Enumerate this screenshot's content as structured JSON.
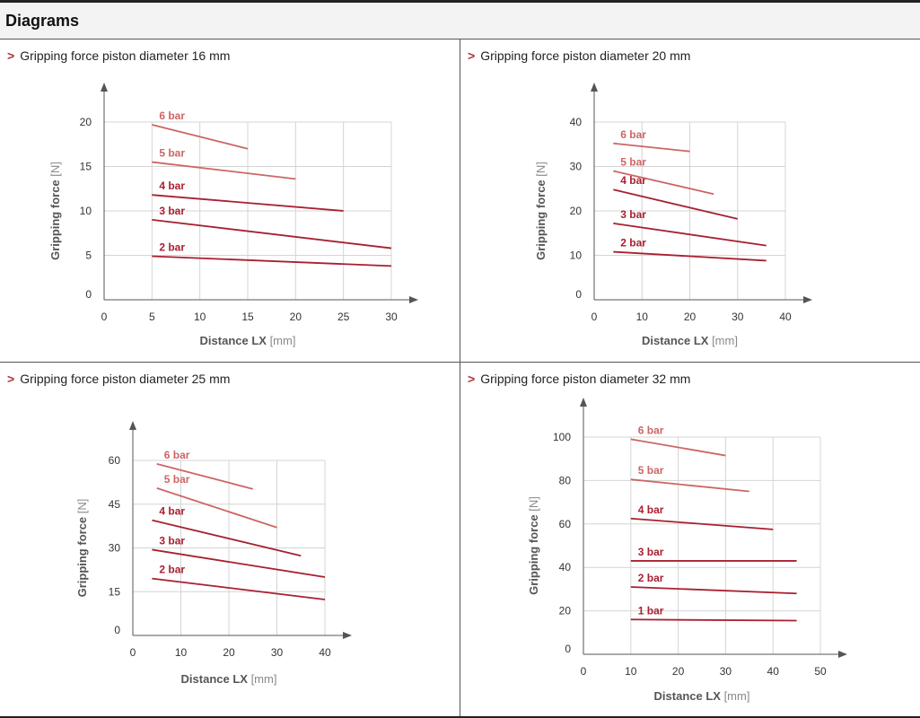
{
  "page": {
    "heading": "Diagrams",
    "title_marker": ">"
  },
  "colors": {
    "accent": "#b0323c",
    "dark_line": "#a82030",
    "light_line": "#cc6666",
    "grid": "#d4d4d4",
    "axis": "#555555"
  },
  "chart_data": [
    {
      "type": "line",
      "title": "Gripping force piston diameter 16 mm",
      "xlabel": "Distance LX",
      "xunit": "[mm]",
      "ylabel": "Gripping force",
      "yunit": "[N]",
      "xticks": [
        0,
        5,
        10,
        15,
        20,
        25,
        30
      ],
      "yticks": [
        0,
        5,
        10,
        15,
        20
      ],
      "xlim": [
        0,
        30
      ],
      "ylim": [
        0,
        20
      ],
      "grid": true,
      "series": [
        {
          "name": "2 bar",
          "x": [
            5,
            30
          ],
          "y": [
            4.9,
            3.8
          ]
        },
        {
          "name": "3 bar",
          "x": [
            5,
            30
          ],
          "y": [
            9.0,
            5.8
          ]
        },
        {
          "name": "4 bar",
          "x": [
            5,
            25
          ],
          "y": [
            11.8,
            10.0
          ]
        },
        {
          "name": "5 bar",
          "x": [
            5,
            20
          ],
          "y": [
            15.5,
            13.6
          ]
        },
        {
          "name": "6 bar",
          "x": [
            5,
            15
          ],
          "y": [
            19.7,
            17.0
          ]
        }
      ]
    },
    {
      "type": "line",
      "title": "Gripping force piston diameter 20 mm",
      "xlabel": "Distance LX",
      "xunit": "[mm]",
      "ylabel": "Gripping force",
      "yunit": "[N]",
      "xticks": [
        0,
        10,
        20,
        30,
        40
      ],
      "yticks": [
        0,
        10,
        20,
        30,
        40
      ],
      "xlim": [
        0,
        40
      ],
      "ylim": [
        0,
        40
      ],
      "grid": true,
      "series": [
        {
          "name": "2 bar",
          "x": [
            4,
            36
          ],
          "y": [
            10.8,
            8.8
          ]
        },
        {
          "name": "3 bar",
          "x": [
            4,
            36
          ],
          "y": [
            17.2,
            12.2
          ]
        },
        {
          "name": "4 bar",
          "x": [
            4,
            30
          ],
          "y": [
            24.8,
            18.2
          ]
        },
        {
          "name": "5 bar",
          "x": [
            4,
            25
          ],
          "y": [
            29.0,
            23.8
          ]
        },
        {
          "name": "6 bar",
          "x": [
            4,
            20
          ],
          "y": [
            35.2,
            33.4
          ]
        }
      ]
    },
    {
      "type": "line",
      "title": "Gripping force piston diameter 25 mm",
      "xlabel": "Distance LX",
      "xunit": "[mm]",
      "ylabel": "Gripping force",
      "yunit": "[N]",
      "xticks": [
        0,
        10,
        20,
        30,
        40
      ],
      "yticks": [
        0,
        15,
        30,
        45,
        60
      ],
      "xlim": [
        0,
        40
      ],
      "ylim": [
        0,
        60
      ],
      "grid": true,
      "series": [
        {
          "name": "2 bar",
          "x": [
            4,
            40
          ],
          "y": [
            19.5,
            12.3
          ]
        },
        {
          "name": "3 bar",
          "x": [
            4,
            40
          ],
          "y": [
            29.4,
            20.0
          ]
        },
        {
          "name": "4 bar",
          "x": [
            4,
            35
          ],
          "y": [
            39.5,
            27.3
          ]
        },
        {
          "name": "5 bar",
          "x": [
            5,
            30
          ],
          "y": [
            50.5,
            37.0
          ]
        },
        {
          "name": "6 bar",
          "x": [
            5,
            25
          ],
          "y": [
            58.8,
            50.2
          ]
        }
      ]
    },
    {
      "type": "line",
      "title": "Gripping force piston diameter 32 mm",
      "xlabel": "Distance LX",
      "xunit": "[mm]",
      "ylabel": "Gripping force",
      "yunit": "[N]",
      "xticks": [
        0,
        10,
        20,
        30,
        40,
        50
      ],
      "yticks": [
        0,
        20,
        40,
        60,
        80,
        100
      ],
      "xlim": [
        0,
        50
      ],
      "ylim": [
        0,
        100
      ],
      "grid": true,
      "series": [
        {
          "name": "1 bar",
          "x": [
            10,
            45
          ],
          "y": [
            16.0,
            15.5
          ]
        },
        {
          "name": "2 bar",
          "x": [
            10,
            45
          ],
          "y": [
            31.0,
            28.0
          ]
        },
        {
          "name": "3 bar",
          "x": [
            10,
            45
          ],
          "y": [
            43.0,
            43.0
          ]
        },
        {
          "name": "4 bar",
          "x": [
            10,
            40
          ],
          "y": [
            62.5,
            57.5
          ]
        },
        {
          "name": "5 bar",
          "x": [
            10,
            35
          ],
          "y": [
            80.5,
            75.0
          ]
        },
        {
          "name": "6 bar",
          "x": [
            10,
            30
          ],
          "y": [
            99.0,
            91.5
          ]
        }
      ]
    }
  ]
}
